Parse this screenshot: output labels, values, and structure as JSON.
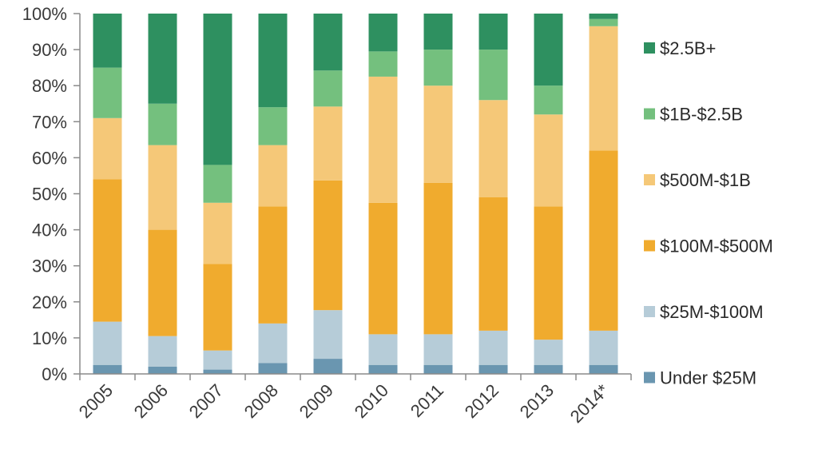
{
  "chart_data": {
    "type": "bar",
    "stacked": true,
    "categories": [
      "2005",
      "2006",
      "2007",
      "2008",
      "2009",
      "2010",
      "2011",
      "2012",
      "2013",
      "2014*"
    ],
    "ylim": [
      0,
      100
    ],
    "yticks": [
      "0%",
      "10%",
      "20%",
      "30%",
      "40%",
      "50%",
      "60%",
      "70%",
      "80%",
      "90%",
      "100%"
    ],
    "grid": false,
    "legend_position": "right",
    "series": [
      {
        "name": "Under $25M",
        "color": "#6A96B0",
        "values": [
          2.5,
          2.0,
          1.2,
          3.0,
          4.2,
          2.5,
          2.5,
          2.5,
          2.5,
          2.5
        ]
      },
      {
        "name": "$25M-$100M",
        "color": "#B6CCD8",
        "values": [
          12.0,
          8.5,
          5.3,
          11.0,
          13.5,
          8.5,
          8.5,
          9.5,
          7.0,
          9.5
        ]
      },
      {
        "name": "$100M-$500M",
        "color": "#F0AB2E",
        "values": [
          39.5,
          29.5,
          24.0,
          32.5,
          36.0,
          36.5,
          42.0,
          37.0,
          37.0,
          50.0
        ]
      },
      {
        "name": "$500M-$1B",
        "color": "#F5C878",
        "values": [
          17.0,
          23.5,
          17.0,
          17.0,
          20.5,
          35.0,
          27.0,
          27.0,
          25.5,
          34.5
        ]
      },
      {
        "name": "$1B-$2.5B",
        "color": "#74C07E",
        "values": [
          14.0,
          11.5,
          10.5,
          10.5,
          10.0,
          7.0,
          10.0,
          14.0,
          8.0,
          2.0
        ]
      },
      {
        "name": "$2.5B+",
        "color": "#2E9060",
        "values": [
          15.0,
          25.0,
          42.0,
          26.0,
          15.8,
          10.5,
          10.0,
          10.0,
          20.0,
          1.5
        ]
      }
    ],
    "legend_order": [
      "$2.5B+",
      "$1B-$2.5B",
      "$500M-$1B",
      "$100M-$500M",
      "$25M-$100M",
      "Under $25M"
    ]
  }
}
